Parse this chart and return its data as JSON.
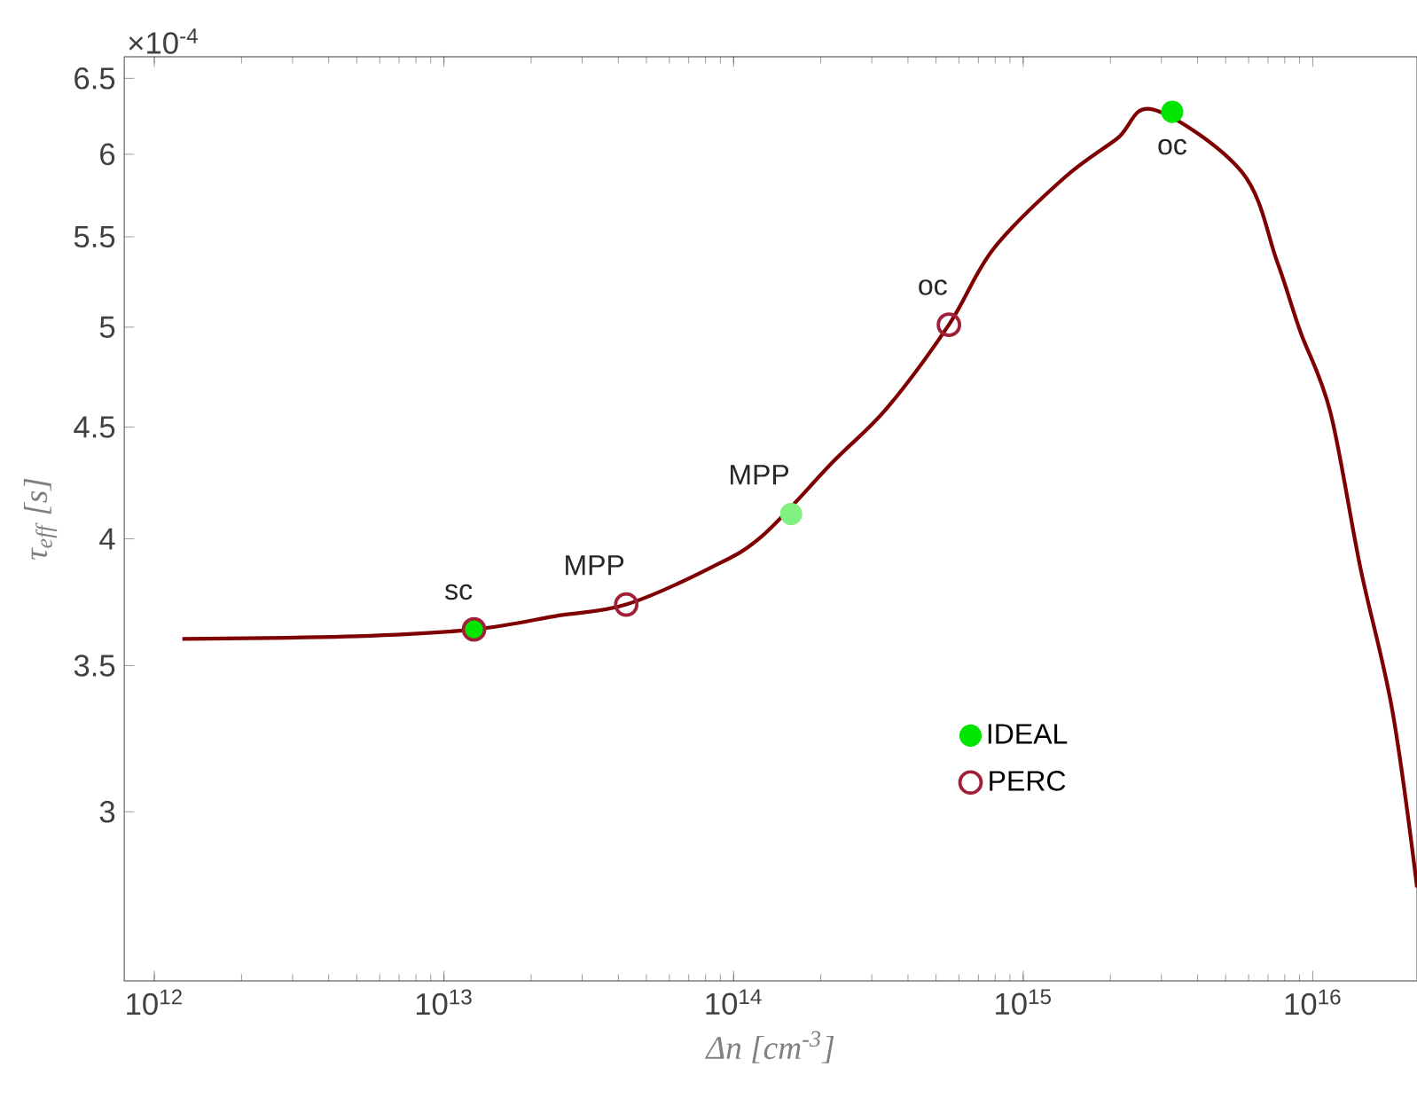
{
  "chart_data": {
    "type": "line",
    "xlabel": "Δn [cm$^{-3}$]",
    "ylabel": "τ$_{eff}$ [s]",
    "log": "xy",
    "xlim": [
      787000000000.0,
      2.29e+16
    ],
    "ylim": [
      2.51,
      6.65
    ],
    "xticks": [
      {
        "value": 1000000000000.0,
        "label": "10$^{12}$"
      },
      {
        "value": 10000000000000.0,
        "label": "10$^{13}$"
      },
      {
        "value": 100000000000000.0,
        "label": "10$^{14}$"
      },
      {
        "value": 1000000000000000.0,
        "label": "10$^{15}$"
      },
      {
        "value": 1e+16,
        "label": "10$^{16}$"
      }
    ],
    "yticks": [
      3,
      3.5,
      4,
      4.5,
      5,
      5.5,
      6,
      6.5
    ],
    "grid": false,
    "legend": "bottom right",
    "series": [
      {
        "color": "#7f0000",
        "marker": "none",
        "x": [
          1250000000000.0,
          5000000000000.0,
          12700000000000.0,
          25000000000000.0,
          42600000000000.0,
          83000000000000.0,
          126000000000000.0,
          221000000000000.0,
          338000000000000.0,
          554000000000000.0,
          789000000000000.0,
          1380000000000000.0,
          2110000000000000.0,
          2810000000000000.0,
          5680000000000000.0,
          7520000000000000.0,
          9040000000000000.0,
          1.15e+16,
          1.46e+16,
          1.88e+16,
          2.29e+16
        ],
        "values": [
          3.6,
          3.61,
          3.636,
          3.69,
          3.733,
          3.88,
          4.014,
          4.34,
          4.59,
          5.013,
          5.43,
          5.85,
          6.1,
          6.29,
          5.89,
          5.36,
          4.98,
          4.57,
          3.88,
          3.34,
          2.77
        ]
      },
      {
        "type": "scatter",
        "name": "IDEAL",
        "marker": "circle",
        "color": "#00e600",
        "colors": [
          "#00e600",
          "#80f080",
          "#00e600"
        ],
        "x": [
          12700000000000.0,
          158000000000000.0,
          3270000000000000.0
        ],
        "values": [
          3.636,
          4.106,
          6.274
        ]
      },
      {
        "type": "scatter",
        "name": "PERC",
        "marker": "circle",
        "color": "#a0203a",
        "x": [
          12700000000000.0,
          42600000000000.0,
          554000000000000.0
        ],
        "values": [
          3.636,
          3.733,
          5.013
        ]
      }
    ],
    "annotations": [
      "×10$^{-4}$",
      {
        "text": "sc",
        "x": 12700000000000.0,
        "y": 3.636
      },
      {
        "text": "MPP",
        "x": 42600000000000.0,
        "y": 3.733
      },
      {
        "text": "MPP",
        "x": 158000000000000.0,
        "y": 4.106
      },
      {
        "text": "oc",
        "x": 554000000000000.0,
        "y": 5.013
      },
      {
        "text": "oc",
        "x": 3270000000000000.0,
        "y": 6.274
      }
    ]
  }
}
